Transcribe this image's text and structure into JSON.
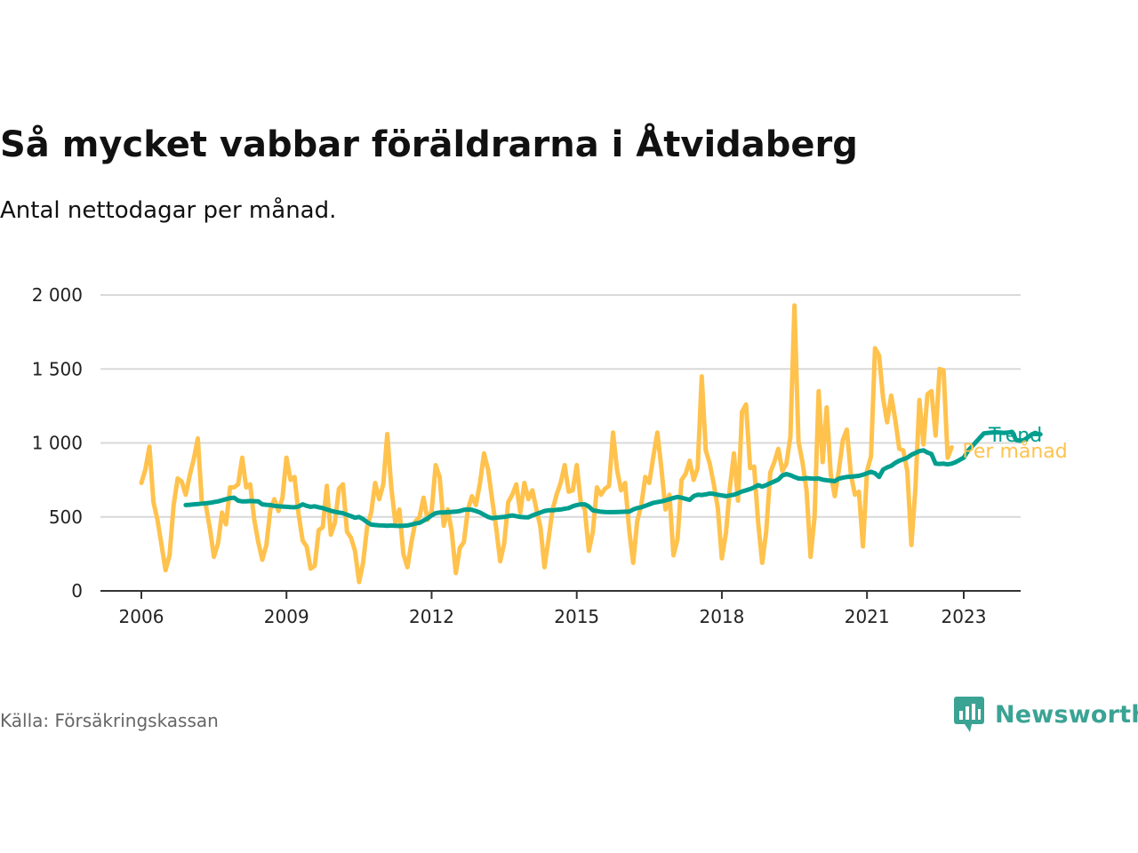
{
  "title": "Så mycket vabbar föräldrarna i Åtvidaberg",
  "subtitle": "Antal nettodagar per månad.",
  "source": "Källa: Försäkringskassan",
  "brand": {
    "name": "Newsworthy",
    "logo_icon": "newsworthy-logo-icon"
  },
  "colors": {
    "monthly": "#ffc24d",
    "trend": "#009e8e",
    "grid": "#d9d9d9",
    "axis": "#333333",
    "brand": "#3aa394"
  },
  "chart_data": {
    "type": "line",
    "title": "Så mycket vabbar föräldrarna i Åtvidaberg",
    "subtitle": "Antal nettodagar per månad.",
    "ylim": [
      0,
      2000
    ],
    "y_ticks": [
      0,
      500,
      1000,
      1500,
      2000
    ],
    "y_tick_labels": [
      "0",
      "500",
      "1 000",
      "1 500",
      "2 000"
    ],
    "xlim": [
      "2006-01",
      "2023-06"
    ],
    "x_ticks": [
      "2006-01",
      "2009-01",
      "2012-01",
      "2015-01",
      "2018-01",
      "2021-01",
      "2023-01"
    ],
    "x_tick_labels": [
      "2006",
      "2009",
      "2012",
      "2015",
      "2018",
      "2021",
      "2023"
    ],
    "grid": true,
    "legend": "direct labels at line ends (right)",
    "series": [
      {
        "name": "Per månad",
        "color": "#ffc24d",
        "start": "2006-01",
        "values": [
          730,
          820,
          975,
          600,
          480,
          310,
          140,
          240,
          580,
          760,
          740,
          650,
          780,
          890,
          1030,
          600,
          580,
          420,
          230,
          320,
          530,
          450,
          700,
          700,
          720,
          900,
          700,
          720,
          480,
          330,
          210,
          310,
          550,
          620,
          540,
          630,
          900,
          750,
          770,
          520,
          340,
          300,
          150,
          170,
          410,
          430,
          710,
          380,
          460,
          690,
          720,
          400,
          360,
          270,
          60,
          190,
          430,
          530,
          730,
          620,
          720,
          1060,
          700,
          460,
          550,
          250,
          160,
          330,
          470,
          500,
          630,
          480,
          540,
          850,
          770,
          440,
          550,
          400,
          120,
          290,
          330,
          550,
          640,
          580,
          730,
          930,
          820,
          620,
          430,
          200,
          320,
          600,
          650,
          720,
          530,
          730,
          620,
          680,
          550,
          430,
          160,
          350,
          550,
          650,
          730,
          850,
          670,
          680,
          850,
          600,
          550,
          270,
          400,
          700,
          650,
          690,
          710,
          1070,
          820,
          680,
          730,
          410,
          190,
          470,
          580,
          770,
          730,
          910,
          1070,
          830,
          550,
          650,
          240,
          350,
          750,
          790,
          880,
          750,
          830,
          1450,
          950,
          860,
          720,
          560,
          220,
          390,
          700,
          930,
          610,
          1210,
          1260,
          830,
          840,
          460,
          190,
          400,
          800,
          870,
          960,
          810,
          860,
          1040,
          1930,
          1010,
          870,
          680,
          230,
          500,
          1350,
          870,
          1240,
          790,
          640,
          810,
          1020,
          1090,
          790,
          650,
          670,
          300,
          810,
          910,
          1640,
          1590,
          1300,
          1140,
          1320,
          1160,
          960,
          950,
          810,
          310,
          690,
          1290,
          990,
          1330,
          1350,
          1050,
          1500,
          1490,
          900,
          970
        ]
      },
      {
        "name": "Trend",
        "color": "#009e8e",
        "start": "2006-12",
        "values": [
          580,
          582,
          585,
          587,
          590,
          592,
          595,
          600,
          605,
          612,
          620,
          627,
          630,
          610,
          605,
          605,
          607,
          606,
          605,
          585,
          582,
          580,
          575,
          572,
          570,
          568,
          566,
          565,
          570,
          585,
          575,
          568,
          572,
          565,
          560,
          550,
          542,
          535,
          530,
          525,
          515,
          505,
          495,
          500,
          485,
          465,
          448,
          445,
          443,
          442,
          440,
          442,
          440,
          439,
          440,
          442,
          448,
          455,
          460,
          475,
          490,
          510,
          525,
          530,
          530,
          532,
          534,
          536,
          540,
          548,
          550,
          548,
          540,
          530,
          515,
          500,
          492,
          495,
          498,
          500,
          505,
          510,
          505,
          500,
          498,
          497,
          510,
          520,
          530,
          540,
          545,
          545,
          548,
          550,
          555,
          560,
          572,
          580,
          585,
          585,
          570,
          545,
          540,
          535,
          533,
          532,
          532,
          533,
          534,
          535,
          536,
          550,
          560,
          565,
          575,
          585,
          595,
          600,
          605,
          612,
          620,
          628,
          635,
          630,
          622,
          615,
          640,
          650,
          648,
          652,
          658,
          655,
          650,
          645,
          640,
          645,
          650,
          660,
          672,
          680,
          688,
          700,
          715,
          705,
          715,
          728,
          740,
          752,
          780,
          790,
          782,
          770,
          760,
          758,
          762,
          760,
          758,
          760,
          752,
          748,
          745,
          742,
          758,
          765,
          770,
          772,
          775,
          778,
          785,
          795,
          805,
          795,
          770,
          820,
          835,
          845,
          865,
          880,
          890,
          900,
          920,
          932,
          945,
          950,
          935,
          925,
          860,
          858,
          860,
          855,
          860,
          870,
          885,
          900,
          945,
          975,
          1005,
          1035,
          1065,
          1068,
          1070,
          1072,
          1070,
          1068,
          1070,
          1075,
          1020,
          1015,
          1020,
          1040,
          1060,
          1060,
          1058
        ]
      }
    ]
  }
}
